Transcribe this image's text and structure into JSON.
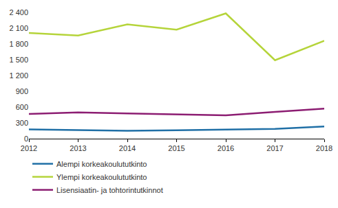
{
  "chart_data": {
    "type": "line",
    "x": [
      2012,
      2013,
      2014,
      2015,
      2016,
      2017,
      2018
    ],
    "series": [
      {
        "name": "Alempi korkeakoulututkinto",
        "color": "#1f6fa6",
        "values": [
          175,
          165,
          150,
          160,
          170,
          185,
          230
        ]
      },
      {
        "name": "Ylempi korkeakoulututkinto",
        "color": "#b5d43a",
        "values": [
          2010,
          1960,
          2170,
          2070,
          2380,
          1490,
          1860
        ]
      },
      {
        "name": "Lisensiaatin- ja tohtorintutkinnot",
        "color": "#8c1d72",
        "values": [
          470,
          500,
          480,
          465,
          445,
          510,
          570
        ]
      }
    ],
    "xlim": [
      2012,
      2018
    ],
    "xticks": [
      2012,
      2013,
      2014,
      2015,
      2016,
      2017,
      2018
    ],
    "ylim": [
      0,
      2400
    ],
    "yticks": [
      0,
      300,
      600,
      900,
      {
        "value": 1200,
        "label": "1 200"
      },
      {
        "value": 1500,
        "label": "1 500"
      },
      {
        "value": 1800,
        "label": "1 800"
      },
      {
        "value": 2100,
        "label": "2 100"
      },
      {
        "value": 2400,
        "label": "2 400"
      }
    ],
    "grid": false,
    "legend": "bottom"
  }
}
